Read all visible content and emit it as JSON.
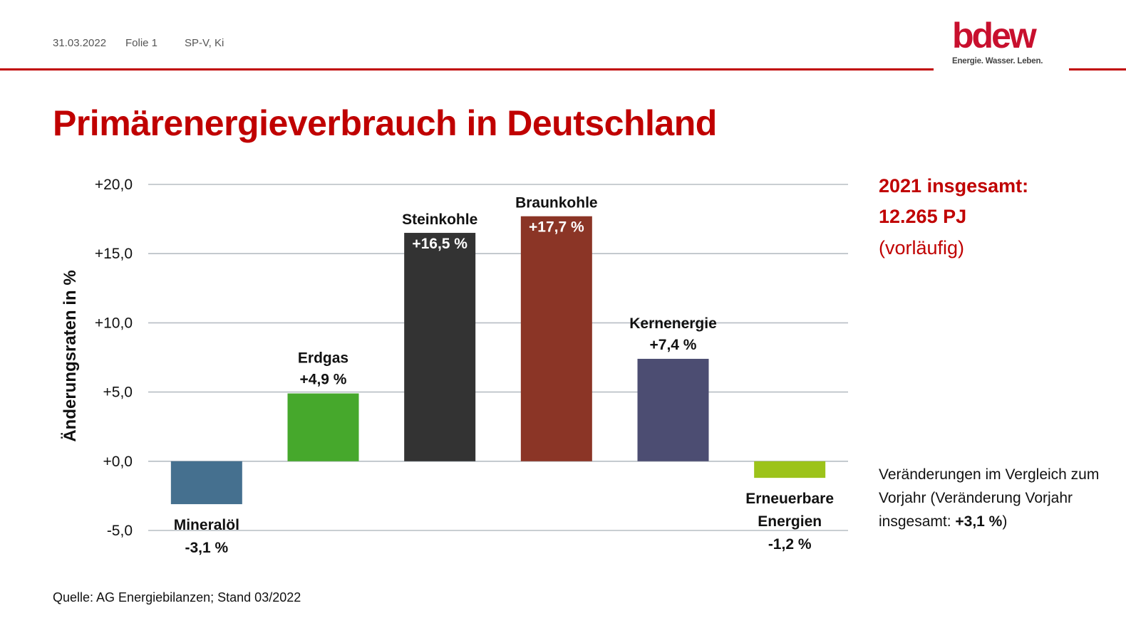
{
  "header": {
    "date": "31.03.2022",
    "slide": "Folie 1",
    "author": "SP-V, Ki"
  },
  "logo": {
    "name": "bdew",
    "tagline": "Energie. Wasser. Leben."
  },
  "title": "Primärenergieverbrauch in Deutschland",
  "summary": {
    "label": "2021 insgesamt:",
    "value": "12.265 PJ",
    "note": "(vorläufig)"
  },
  "note": {
    "text": "Veränderungen im Vergleich zum Vorjahr (Veränderung Vorjahr insgesamt: ",
    "bold": "+3,1 %",
    "end": ")"
  },
  "source": "Quelle: AG Energiebilanzen; Stand 03/2022",
  "chart_data": {
    "type": "bar",
    "ylabel": "Änderungsraten in %",
    "ylim": [
      -5,
      20
    ],
    "yticks": [
      20,
      15,
      10,
      5,
      0,
      -5
    ],
    "ytick_labels": [
      "+20,0",
      "+15,0",
      "+10,0",
      "+5,0",
      "+0,0",
      "-5,0"
    ],
    "grid": true,
    "categories": [
      "Mineralöl",
      "Erdgas",
      "Steinkohle",
      "Braunkohle",
      "Kernenergie",
      "Erneuerbare Energien"
    ],
    "values": [
      -3.1,
      4.9,
      16.5,
      17.7,
      7.4,
      -1.2
    ],
    "data_labels": [
      "-3,1 %",
      "+4,9 %",
      "+16,5 %",
      "+17,7 %",
      "+7,4 %",
      "-1,2 %"
    ],
    "colors": [
      "#45708f",
      "#46a82c",
      "#333333",
      "#8b3526",
      "#4c4d72",
      "#9cc31a"
    ]
  }
}
